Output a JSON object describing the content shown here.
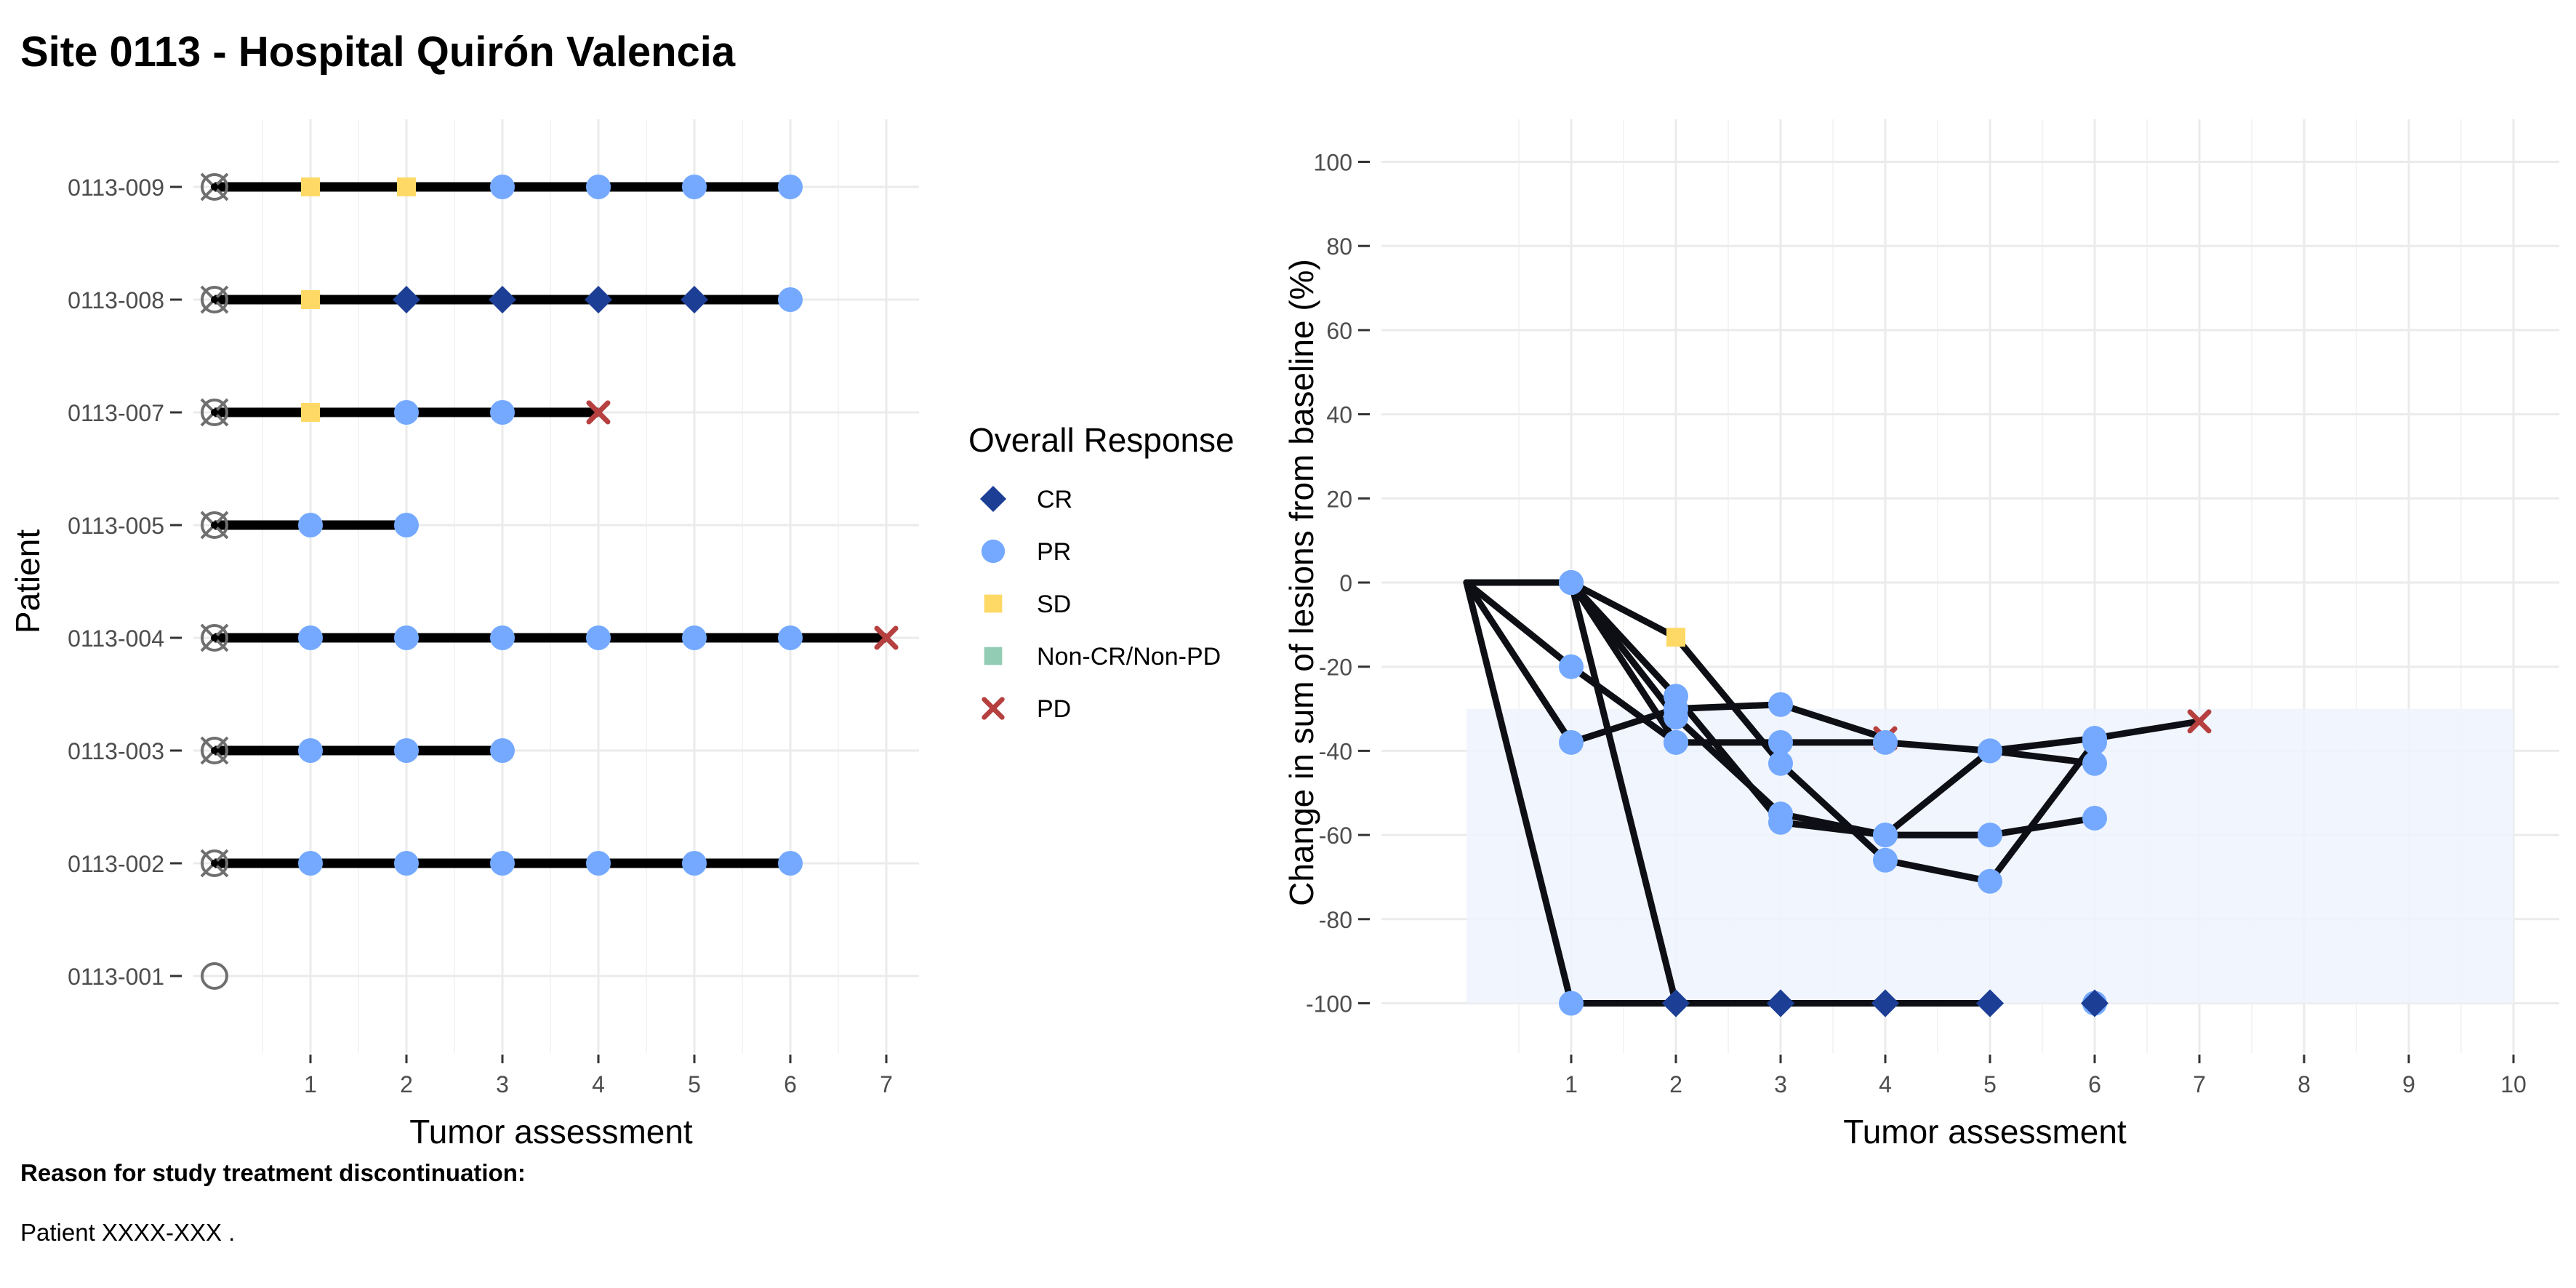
{
  "title": "Site 0113 - Hospital Quirón Valencia",
  "footer": {
    "heading": "Reason for study treatment discontinuation:",
    "text": "Patient XXXX-XXX ."
  },
  "colors": {
    "CR": "#1c3f95",
    "PR": "#74a9ff",
    "SD": "#ffd966",
    "Non-CR/Non-PD": "#93ccb4",
    "PD": "#b5403f",
    "line": "#000000",
    "spider_line": "#0d0f14",
    "band": "#eef3fd",
    "grid": "#ebebeb",
    "baseline_marker": "#6f6f6f"
  },
  "legend": {
    "title": "Overall Response",
    "items": [
      {
        "label": "CR",
        "shape": "diamond",
        "icon": "diamond-icon"
      },
      {
        "label": "PR",
        "shape": "circle",
        "icon": "circle-icon"
      },
      {
        "label": "SD",
        "shape": "square",
        "icon": "square-icon"
      },
      {
        "label": "Non-CR/Non-PD",
        "shape": "square",
        "icon": "square-icon"
      },
      {
        "label": "PD",
        "shape": "cross",
        "icon": "cross-icon"
      }
    ]
  },
  "chart_data": [
    {
      "type": "scatter",
      "subtype": "swimmer",
      "title": "",
      "xlabel": "Tumor assessment",
      "ylabel": "Patient",
      "xlim": [
        0,
        7
      ],
      "x_ticks": [
        1,
        2,
        3,
        4,
        5,
        6,
        7
      ],
      "grid": true,
      "patients": [
        {
          "id": "0113-001",
          "baseline_marked": false,
          "responses": []
        },
        {
          "id": "0113-002",
          "baseline_marked": true,
          "responses": [
            "PR",
            "PR",
            "PR",
            "PR",
            "PR",
            "PR"
          ]
        },
        {
          "id": "0113-003",
          "baseline_marked": true,
          "responses": [
            "PR",
            "PR",
            "PR"
          ]
        },
        {
          "id": "0113-004",
          "baseline_marked": true,
          "responses": [
            "PR",
            "PR",
            "PR",
            "PR",
            "PR",
            "PR",
            "PD"
          ]
        },
        {
          "id": "0113-005",
          "baseline_marked": true,
          "responses": [
            "PR",
            "PR"
          ]
        },
        {
          "id": "0113-007",
          "baseline_marked": true,
          "responses": [
            "SD",
            "PR",
            "PR",
            "PD"
          ]
        },
        {
          "id": "0113-008",
          "baseline_marked": true,
          "responses": [
            "SD",
            "CR",
            "CR",
            "CR",
            "CR",
            "PR"
          ]
        },
        {
          "id": "0113-009",
          "baseline_marked": true,
          "responses": [
            "SD",
            "SD",
            "PR",
            "PR",
            "PR",
            "PR"
          ]
        }
      ]
    },
    {
      "type": "line",
      "subtype": "spider",
      "title": "",
      "xlabel": "Tumor assessment",
      "ylabel": "Change in sum of lesions from baseline (%)",
      "xlim": [
        0,
        10
      ],
      "ylim": [
        -100,
        100
      ],
      "x_ticks": [
        1,
        2,
        3,
        4,
        5,
        6,
        7,
        8,
        9,
        10
      ],
      "y_ticks": [
        -100,
        -80,
        -60,
        -40,
        -20,
        0,
        20,
        40,
        60,
        80,
        100
      ],
      "grid": true,
      "shaded_band": {
        "x": [
          0,
          10
        ],
        "y": [
          -100,
          -30
        ]
      },
      "series": [
        {
          "x": [
            0,
            1,
            2,
            3,
            4,
            5,
            6
          ],
          "y": [
            0,
            -100,
            -100,
            -100,
            -100,
            -100,
            -100
          ],
          "r": [
            "",
            "PR",
            "CR",
            "CR",
            "CR",
            "CR",
            "PR"
          ],
          "connect": [
            true,
            true,
            true,
            true,
            true,
            false
          ]
        },
        {
          "x": [
            0,
            1,
            2,
            3,
            4
          ],
          "y": [
            0,
            -38,
            -30,
            -29,
            -37
          ],
          "r": [
            "",
            "PR",
            "PR",
            "PR",
            "PD"
          ]
        },
        {
          "x": [
            0,
            1,
            2,
            3,
            4,
            5,
            6,
            7
          ],
          "y": [
            0,
            0,
            -38,
            -38,
            -38,
            -40,
            -37,
            -33
          ],
          "r": [
            "",
            "PR",
            "PR",
            "PR",
            "PR",
            "PR",
            "PR",
            "PD"
          ]
        },
        {
          "x": [
            0,
            1,
            2
          ],
          "y": [
            0,
            -20,
            -38
          ],
          "r": [
            "",
            "PR",
            "PR"
          ]
        },
        {
          "x": [
            0,
            1,
            2,
            3,
            4,
            5,
            6
          ],
          "y": [
            0,
            0,
            -13,
            -43,
            -66,
            -71,
            -38
          ],
          "r": [
            "",
            "PR",
            "SD",
            "PR",
            "PR",
            "PR",
            "PR"
          ]
        },
        {
          "x": [
            0,
            1,
            2,
            3,
            4,
            5,
            6
          ],
          "y": [
            0,
            0,
            -100,
            -100,
            -100,
            -100,
            -100
          ],
          "r": [
            "",
            "PR",
            "CR",
            "CR",
            "CR",
            "CR",
            "CR"
          ],
          "connect": [
            true,
            true,
            true,
            true,
            true,
            false
          ]
        },
        {
          "x": [
            0,
            1,
            2,
            3,
            4,
            5,
            6
          ],
          "y": [
            0,
            0,
            -27,
            -57,
            -60,
            -60,
            -56
          ],
          "r": [
            "",
            "PR",
            "PR",
            "PR",
            "PR",
            "PR",
            "PR"
          ]
        },
        {
          "x": [
            0,
            1,
            2,
            3,
            4,
            5,
            6
          ],
          "y": [
            0,
            0,
            -32,
            -55,
            -60,
            -40,
            -43
          ],
          "r": [
            "",
            "PR",
            "PR",
            "PR",
            "PR",
            "PR",
            "PR"
          ]
        }
      ]
    }
  ]
}
